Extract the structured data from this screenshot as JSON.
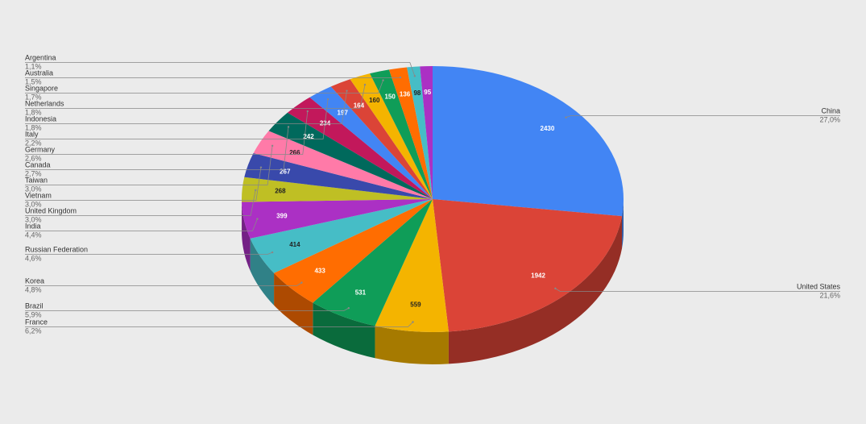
{
  "chart_data": {
    "type": "pie",
    "categories": [
      "China",
      "United States",
      "France",
      "Brazil",
      "Korea",
      "Russian Federation",
      "India",
      "United Kingdom",
      "Vietnam",
      "Taiwan",
      "Canada",
      "Germany",
      "Italy",
      "Indonesia",
      "Netherlands",
      "Singapore",
      "Australia",
      "Argentina",
      null
    ],
    "values": [
      2430,
      1942,
      559,
      531,
      433,
      414,
      399,
      268,
      267,
      266,
      242,
      234,
      197,
      164,
      160,
      150,
      136,
      98,
      95
    ],
    "percent_labels": [
      "27,0%",
      "21,6%",
      "6,2%",
      "5,9%",
      "4,8%",
      "4,6%",
      "4,4%",
      "3,0%",
      "3,0%",
      "3,0%",
      "2,7%",
      "2,6%",
      "2,2%",
      "1,8%",
      "1,8%",
      "1,7%",
      "1,5%",
      "1,1%",
      null
    ],
    "colors": [
      "#4285f4",
      "#db4437",
      "#f4b400",
      "#0f9d58",
      "#ff6d01",
      "#46bdc6",
      "#ab30c4",
      "#bfbf24",
      "#3949ab",
      "#ff7aa8",
      "#00695c",
      "#c2185b",
      "#4285f4",
      "#db4437",
      "#f4b400",
      "#0f9d58",
      "#ff6d01",
      "#46bdc6",
      "#ab30c4"
    ]
  }
}
